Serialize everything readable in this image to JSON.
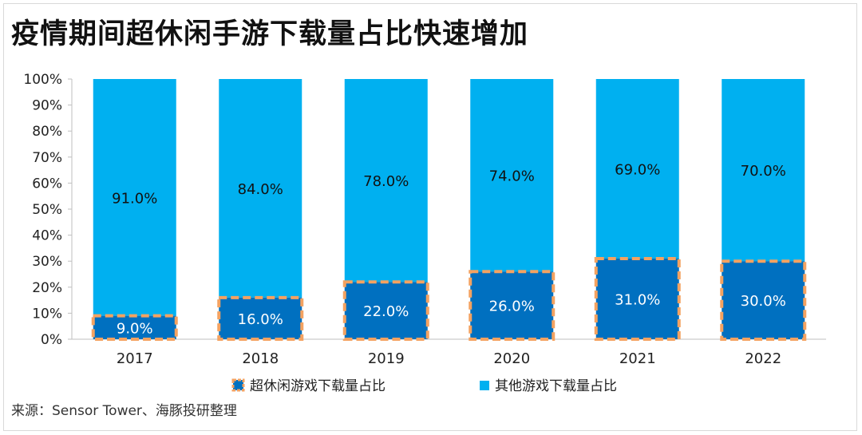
{
  "title": "疫情期间超休闲手游下载量占比快速增加",
  "source": "来源：Sensor Tower、海豚投研整理",
  "colors": {
    "series1_fill": "#0070C0",
    "series1_border": "#F4A261",
    "series2_fill": "#00B0F0"
  },
  "chart_data": {
    "type": "bar",
    "stacked": true,
    "categories": [
      "2017",
      "2018",
      "2019",
      "2020",
      "2021",
      "2022"
    ],
    "series": [
      {
        "name": "超休闲游戏下载量占比",
        "values": [
          9.0,
          16.0,
          22.0,
          26.0,
          31.0,
          30.0
        ],
        "labels": [
          "9.0%",
          "16.0%",
          "22.0%",
          "26.0%",
          "31.0%",
          "30.0%"
        ]
      },
      {
        "name": "其他游戏下载量占比",
        "values": [
          91.0,
          84.0,
          78.0,
          74.0,
          69.0,
          70.0
        ],
        "labels": [
          "91.0%",
          "84.0%",
          "78.0%",
          "74.0%",
          "69.0%",
          "70.0%"
        ]
      }
    ],
    "y_ticks": [
      "0%",
      "10%",
      "20%",
      "30%",
      "40%",
      "50%",
      "60%",
      "70%",
      "80%",
      "90%",
      "100%"
    ],
    "ylim": [
      0,
      100
    ],
    "legend_position": "bottom",
    "grid": false
  }
}
